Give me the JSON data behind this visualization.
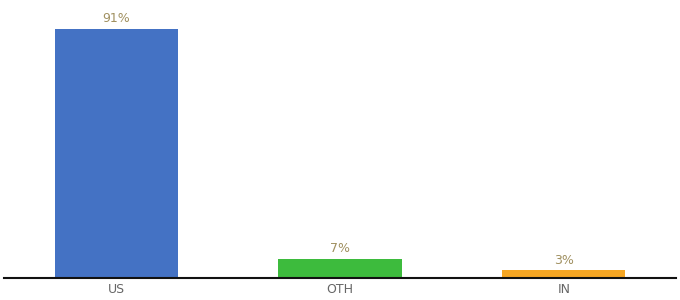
{
  "categories": [
    "US",
    "OTH",
    "IN"
  ],
  "values": [
    91,
    7,
    3
  ],
  "bar_colors": [
    "#4472c4",
    "#3dbb3d",
    "#f5a623"
  ],
  "label_color": "#a09060",
  "labels": [
    "91%",
    "7%",
    "3%"
  ],
  "ylim": [
    0,
    100
  ],
  "background_color": "#ffffff",
  "bar_width": 0.55,
  "label_fontsize": 9,
  "tick_fontsize": 9,
  "tick_color": "#666666",
  "x_positions": [
    0,
    1,
    2
  ],
  "xlim": [
    -0.5,
    2.5
  ]
}
